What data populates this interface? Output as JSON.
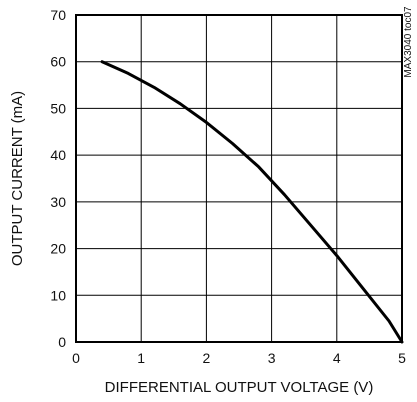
{
  "chart_data": {
    "type": "line",
    "xlabel": "DIFFERENTIAL OUTPUT VOLTAGE (V)",
    "ylabel": "OUTPUT CURRENT (mA)",
    "xlim": [
      0,
      5
    ],
    "ylim": [
      0,
      70
    ],
    "x_ticks": [
      0,
      1,
      2,
      3,
      4,
      5
    ],
    "y_ticks": [
      0,
      10,
      20,
      30,
      40,
      50,
      60,
      70
    ],
    "grid": true,
    "legend": "none",
    "annotations": [
      "MAX3040 toc07"
    ],
    "series": [
      {
        "color": "#000000",
        "x": [
          0.4,
          0.8,
          1.2,
          1.6,
          2.0,
          2.4,
          2.8,
          3.2,
          3.6,
          4.0,
          4.4,
          4.8,
          5.0
        ],
        "y": [
          60,
          57.5,
          54.5,
          51,
          47,
          42.5,
          37.5,
          31.5,
          25,
          18.5,
          11.5,
          4.5,
          0
        ]
      }
    ]
  }
}
